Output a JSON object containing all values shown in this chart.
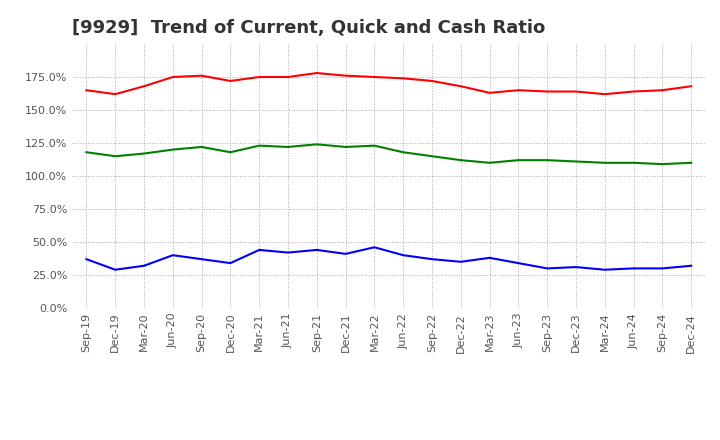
{
  "title": "[9929]  Trend of Current, Quick and Cash Ratio",
  "x_labels": [
    "Sep-19",
    "Dec-19",
    "Mar-20",
    "Jun-20",
    "Sep-20",
    "Dec-20",
    "Mar-21",
    "Jun-21",
    "Sep-21",
    "Dec-21",
    "Mar-22",
    "Jun-22",
    "Sep-22",
    "Dec-22",
    "Mar-23",
    "Jun-23",
    "Sep-23",
    "Dec-23",
    "Mar-24",
    "Jun-24",
    "Sep-24",
    "Dec-24"
  ],
  "current_ratio": [
    1.65,
    1.62,
    1.68,
    1.75,
    1.76,
    1.72,
    1.75,
    1.75,
    1.78,
    1.76,
    1.75,
    1.74,
    1.72,
    1.68,
    1.63,
    1.65,
    1.64,
    1.64,
    1.62,
    1.64,
    1.65,
    1.68
  ],
  "quick_ratio": [
    1.18,
    1.15,
    1.17,
    1.2,
    1.22,
    1.18,
    1.23,
    1.22,
    1.24,
    1.22,
    1.23,
    1.18,
    1.15,
    1.12,
    1.1,
    1.12,
    1.12,
    1.11,
    1.1,
    1.1,
    1.09,
    1.1
  ],
  "cash_ratio": [
    0.37,
    0.29,
    0.32,
    0.4,
    0.37,
    0.34,
    0.44,
    0.42,
    0.44,
    0.41,
    0.46,
    0.4,
    0.37,
    0.35,
    0.38,
    0.34,
    0.3,
    0.31,
    0.29,
    0.3,
    0.3,
    0.32
  ],
  "current_color": "#FF0000",
  "quick_color": "#008000",
  "cash_color": "#0000FF",
  "ylim": [
    0.0,
    2.0
  ],
  "yticks": [
    0.0,
    0.25,
    0.5,
    0.75,
    1.0,
    1.25,
    1.5,
    1.75
  ],
  "ytick_labels": [
    "0.0%",
    "25.0%",
    "50.0%",
    "75.0%",
    "100.0%",
    "125.0%",
    "150.0%",
    "175.0%"
  ],
  "background_color": "#ffffff",
  "grid_color": "#aaaaaa",
  "line_width": 1.5,
  "title_fontsize": 13,
  "tick_fontsize": 8,
  "legend_fontsize": 9
}
